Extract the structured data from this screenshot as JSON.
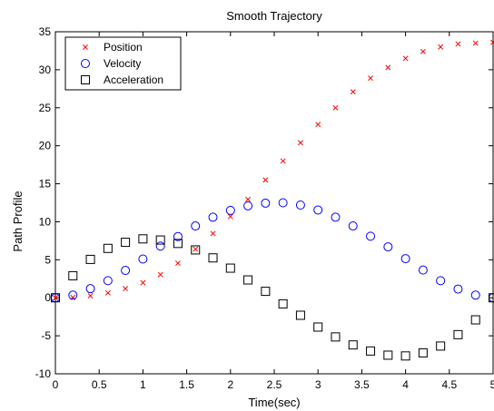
{
  "chart_data": {
    "type": "scatter",
    "title": "Smooth Trajectory",
    "xlabel": "Time(sec)",
    "ylabel": "Path Profile",
    "xlim": [
      0,
      5
    ],
    "ylim": [
      -10,
      35
    ],
    "xticks": [
      0,
      0.5,
      1,
      1.5,
      2,
      2.5,
      3,
      3.5,
      4,
      4.5,
      5
    ],
    "xtick_labels": [
      "0",
      "0.5",
      "1",
      "1.5",
      "2",
      "2.5",
      "3",
      "3.5",
      "4",
      "4.5",
      "5"
    ],
    "yticks": [
      -10,
      -5,
      0,
      5,
      10,
      15,
      20,
      25,
      30,
      35
    ],
    "ytick_labels": [
      "-10",
      "-5",
      "0",
      "5",
      "10",
      "15",
      "20",
      "25",
      "30",
      "35"
    ],
    "grid": false,
    "legend_position": "top-left",
    "x": [
      0,
      0.2,
      0.4,
      0.6,
      0.8,
      1.0,
      1.2,
      1.4,
      1.6,
      1.8,
      2.0,
      2.2,
      2.4,
      2.6,
      2.8,
      3.0,
      3.2,
      3.4,
      3.6,
      3.8,
      4.0,
      4.2,
      4.4,
      4.6,
      4.8,
      5.0
    ],
    "series": [
      {
        "name": "Position",
        "marker": "x",
        "color": "#ff0000",
        "values": [
          0.0,
          0.04,
          0.26,
          0.65,
          1.21,
          1.98,
          3.05,
          4.55,
          6.4,
          8.45,
          10.7,
          12.95,
          15.5,
          18.0,
          20.4,
          22.8,
          25.0,
          27.1,
          28.9,
          30.3,
          31.5,
          32.4,
          33.0,
          33.4,
          33.5,
          33.6
        ]
      },
      {
        "name": "Velocity",
        "marker": "circle",
        "color": "#0000ff",
        "values": [
          0.0,
          0.35,
          1.2,
          2.25,
          3.6,
          5.1,
          6.8,
          8.05,
          9.45,
          10.6,
          11.5,
          12.1,
          12.45,
          12.5,
          12.2,
          11.55,
          10.6,
          9.45,
          8.1,
          6.7,
          5.15,
          3.65,
          2.25,
          1.15,
          0.35,
          0.0
        ]
      },
      {
        "name": "Acceleration",
        "marker": "square",
        "color": "#000000",
        "values": [
          0.0,
          2.9,
          5.05,
          6.5,
          7.3,
          7.75,
          7.6,
          7.15,
          6.3,
          5.25,
          3.9,
          2.35,
          0.85,
          -0.8,
          -2.3,
          -3.85,
          -5.15,
          -6.2,
          -7.0,
          -7.55,
          -7.65,
          -7.25,
          -6.35,
          -4.85,
          -2.9,
          0.0
        ]
      }
    ]
  }
}
